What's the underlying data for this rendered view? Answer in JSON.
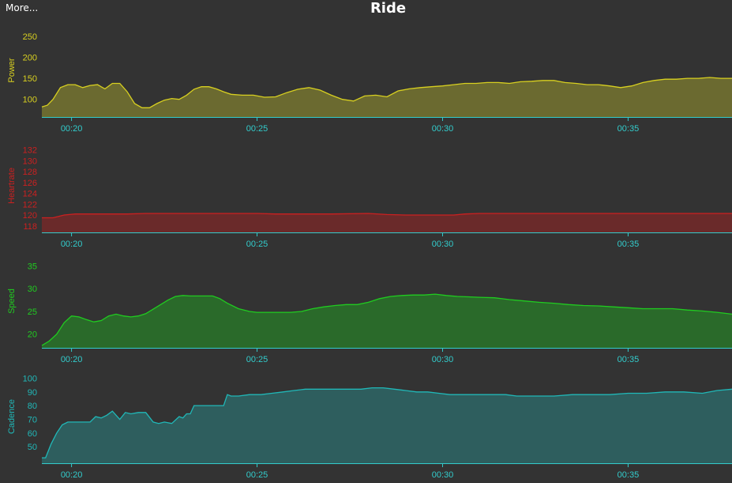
{
  "header": {
    "more_label": "More...",
    "title": "Ride"
  },
  "chart_data": [
    {
      "type": "area",
      "ylabel": "Power",
      "color": "#d8d020",
      "fill": "#6b6a30",
      "ylim": [
        58,
        280
      ],
      "yticks": [
        "250",
        "200",
        "150",
        "100"
      ],
      "ytick_values": [
        250,
        200,
        150,
        100
      ],
      "xticks": [
        "00:20",
        "00:25",
        "00:30",
        "00:35"
      ],
      "xtick_values": [
        20,
        25,
        30,
        35
      ],
      "xlim": [
        19.2,
        37.8
      ],
      "x": [
        19.2,
        19.35,
        19.5,
        19.7,
        19.9,
        20.1,
        20.3,
        20.5,
        20.7,
        20.9,
        21.1,
        21.3,
        21.5,
        21.7,
        21.9,
        22.1,
        22.3,
        22.5,
        22.7,
        22.9,
        23.1,
        23.3,
        23.5,
        23.7,
        23.9,
        24.1,
        24.3,
        24.6,
        24.9,
        25.2,
        25.5,
        25.8,
        26.1,
        26.4,
        26.7,
        27.0,
        27.3,
        27.6,
        27.9,
        28.2,
        28.5,
        28.8,
        29.1,
        29.4,
        29.7,
        30.0,
        30.3,
        30.6,
        30.9,
        31.2,
        31.5,
        31.8,
        32.1,
        32.4,
        32.7,
        33.0,
        33.3,
        33.6,
        33.9,
        34.2,
        34.5,
        34.8,
        35.1,
        35.4,
        35.7,
        36.0,
        36.3,
        36.6,
        36.9,
        37.2,
        37.5,
        37.8
      ],
      "y": [
        82,
        86,
        100,
        128,
        135,
        135,
        128,
        133,
        135,
        125,
        138,
        138,
        118,
        90,
        80,
        80,
        90,
        98,
        102,
        100,
        110,
        124,
        130,
        130,
        125,
        118,
        112,
        110,
        110,
        105,
        106,
        116,
        124,
        128,
        122,
        110,
        100,
        96,
        108,
        110,
        106,
        120,
        125,
        128,
        130,
        132,
        135,
        138,
        138,
        140,
        140,
        138,
        142,
        143,
        145,
        145,
        140,
        138,
        135,
        135,
        132,
        128,
        132,
        140,
        145,
        148,
        148,
        150,
        150,
        152,
        150,
        150
      ]
    },
    {
      "type": "area",
      "ylabel": "Heartrate",
      "color": "#cc2020",
      "fill": "#6a2a2a",
      "ylim": [
        116.8,
        134
      ],
      "yticks": [
        "132",
        "130",
        "128",
        "126",
        "124",
        "122",
        "120",
        "118"
      ],
      "ytick_values": [
        132,
        130,
        128,
        126,
        124,
        122,
        120,
        118
      ],
      "xticks": [
        "00:20",
        "00:25",
        "00:30",
        "00:35"
      ],
      "xtick_values": [
        20,
        25,
        30,
        35
      ],
      "xlim": [
        19.2,
        37.8
      ],
      "x": [
        19.2,
        19.5,
        19.8,
        20.1,
        20.5,
        21,
        21.5,
        22,
        22.5,
        23,
        24,
        25,
        25.5,
        26,
        27,
        28,
        28.5,
        29,
        29.5,
        30,
        30.3,
        30.6,
        31,
        32,
        33,
        34,
        35,
        36,
        37,
        37.8
      ],
      "y": [
        119.5,
        119.5,
        120.0,
        120.2,
        120.2,
        120.2,
        120.2,
        120.3,
        120.3,
        120.3,
        120.3,
        120.3,
        120.2,
        120.2,
        120.2,
        120.3,
        120.1,
        120.0,
        120.0,
        120.0,
        120.0,
        120.2,
        120.3,
        120.3,
        120.3,
        120.3,
        120.3,
        120.3,
        120.3,
        120.3
      ]
    },
    {
      "type": "area",
      "ylabel": "Speed",
      "color": "#20cc20",
      "fill": "#2a6a2a",
      "ylim": [
        17,
        37.5
      ],
      "yticks": [
        "35",
        "30",
        "25",
        "20"
      ],
      "ytick_values": [
        35,
        30,
        25,
        20
      ],
      "xticks": [
        "00:20",
        "00:25",
        "00:30",
        "00:35"
      ],
      "xtick_values": [
        20,
        25,
        30,
        35
      ],
      "xlim": [
        19.2,
        37.8
      ],
      "x": [
        19.2,
        19.4,
        19.6,
        19.8,
        20.0,
        20.2,
        20.4,
        20.6,
        20.8,
        21.0,
        21.2,
        21.4,
        21.6,
        21.8,
        22.0,
        22.2,
        22.4,
        22.6,
        22.8,
        23.0,
        23.2,
        23.4,
        23.6,
        23.8,
        24.0,
        24.2,
        24.5,
        24.8,
        25.0,
        25.3,
        25.6,
        25.9,
        26.2,
        26.5,
        26.8,
        27.1,
        27.4,
        27.7,
        28.0,
        28.3,
        28.6,
        28.9,
        29.2,
        29.5,
        29.8,
        30.1,
        30.4,
        30.7,
        31.0,
        31.4,
        31.8,
        32.2,
        32.6,
        33.0,
        33.4,
        33.8,
        34.2,
        34.6,
        35.0,
        35.4,
        35.8,
        36.2,
        36.6,
        37.0,
        37.4,
        37.8
      ],
      "y": [
        17.5,
        18.5,
        20,
        22.5,
        24,
        23.8,
        23.2,
        22.7,
        23,
        24,
        24.4,
        24,
        23.8,
        24,
        24.5,
        25.5,
        26.5,
        27.5,
        28.3,
        28.5,
        28.4,
        28.4,
        28.4,
        28.4,
        27.8,
        26.8,
        25.6,
        25,
        24.8,
        24.8,
        24.8,
        24.8,
        25,
        25.6,
        26,
        26.3,
        26.5,
        26.5,
        27,
        27.8,
        28.3,
        28.5,
        28.6,
        28.6,
        28.8,
        28.5,
        28.3,
        28.2,
        28.1,
        28,
        27.6,
        27.3,
        27,
        26.8,
        26.5,
        26.3,
        26.2,
        26,
        25.8,
        25.6,
        25.6,
        25.6,
        25.3,
        25.1,
        24.8,
        24.4
      ]
    },
    {
      "type": "area",
      "ylabel": "Cadence",
      "color": "#20b8b8",
      "fill": "#2e5e5e",
      "ylim": [
        38,
        106
      ],
      "yticks": [
        "100",
        "90",
        "80",
        "70",
        "60",
        "50"
      ],
      "ytick_values": [
        100,
        90,
        80,
        70,
        60,
        50
      ],
      "xticks": [
        "00:20",
        "00:25",
        "00:30",
        "00:35"
      ],
      "xtick_values": [
        20,
        25,
        30,
        35
      ],
      "xlim": [
        19.2,
        37.8
      ],
      "x": [
        19.2,
        19.3,
        19.45,
        19.6,
        19.75,
        19.9,
        20.1,
        20.3,
        20.5,
        20.65,
        20.8,
        20.95,
        21.1,
        21.2,
        21.3,
        21.45,
        21.6,
        21.8,
        22.0,
        22.2,
        22.35,
        22.5,
        22.7,
        22.9,
        23.0,
        23.1,
        23.2,
        23.3,
        23.5,
        23.7,
        23.9,
        24.1,
        24.2,
        24.3,
        24.5,
        24.8,
        25.1,
        25.4,
        25.7,
        26.0,
        26.3,
        26.6,
        26.9,
        27.2,
        27.5,
        27.8,
        28.1,
        28.4,
        28.7,
        29.0,
        29.3,
        29.6,
        29.9,
        30.2,
        30.5,
        30.8,
        31.1,
        31.4,
        31.7,
        32.0,
        32.5,
        33.0,
        33.5,
        34.0,
        34.5,
        35.0,
        35.5,
        36.0,
        36.5,
        37.0,
        37.4,
        37.8
      ],
      "y": [
        42,
        42,
        52,
        60,
        66,
        68,
        68,
        68,
        68,
        72,
        71,
        73,
        76,
        73,
        70,
        75,
        74,
        75,
        75,
        68,
        67,
        68,
        67,
        72,
        71,
        74,
        74,
        80,
        80,
        80,
        80,
        80,
        88,
        87,
        87,
        88,
        88,
        89,
        90,
        91,
        92,
        92,
        92,
        92,
        92,
        92,
        93,
        93,
        92,
        91,
        90,
        90,
        89,
        88,
        88,
        88,
        88,
        88,
        88,
        87,
        87,
        87,
        88,
        88,
        88,
        89,
        89,
        90,
        90,
        89,
        91,
        92
      ]
    }
  ]
}
